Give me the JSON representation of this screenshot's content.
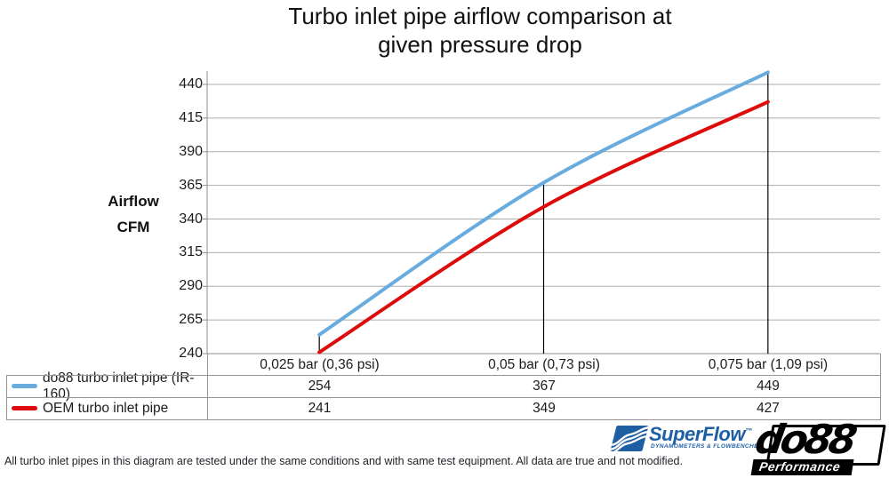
{
  "title": {
    "line1": "Turbo inlet pipe airflow comparison at",
    "line2": "given pressure drop"
  },
  "chart_data": {
    "type": "line",
    "title": "Turbo inlet pipe airflow comparison at given pressure drop",
    "categories": [
      "0,025 bar (0,36 psi)",
      "0,05 bar (0,73 psi)",
      "0,075 bar (1,09 psi)"
    ],
    "series": [
      {
        "name": "do88 turbo inlet pipe (IR-160)",
        "color": "#68ACDF",
        "values": [
          254,
          367,
          449
        ]
      },
      {
        "name": "OEM turbo inlet pipe",
        "color": "#DE0B0B",
        "values": [
          241,
          349,
          427
        ]
      }
    ],
    "xlabel": "",
    "ylabel": "Airflow CFM",
    "ylabel_lines": [
      "Airflow",
      "CFM"
    ],
    "ylim": [
      240,
      440
    ],
    "yticks": [
      240,
      265,
      290,
      315,
      340,
      365,
      390,
      415,
      440
    ],
    "grid": true,
    "smooth_lines": true,
    "drop_lines": true,
    "legend_position": "data-table-left",
    "grid_color": "#ADADAD",
    "axis_color": "#8E8E8E",
    "drop_line_color": "#000000",
    "line_width": 4
  },
  "footer": {
    "disclaimer": "All turbo inlet pipes in this diagram are tested under the same conditions and with same test equipment. All data are true and not modified."
  },
  "logos": {
    "superflow": {
      "wordmark": "SuperFlow",
      "trademark": "™",
      "tagline": "DYNAMOMETERS & FLOWBENCHES",
      "color": "#1E5FA4"
    },
    "do88": {
      "wordmark": "do88",
      "sub": "Performance"
    }
  }
}
